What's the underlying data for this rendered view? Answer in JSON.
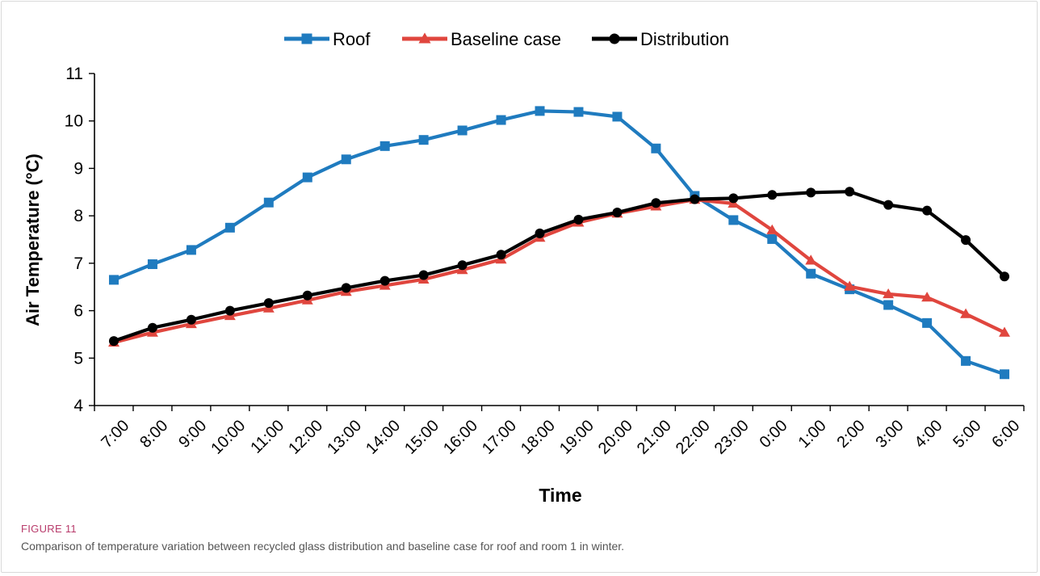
{
  "figure": {
    "label": "FIGURE 11",
    "caption": "Comparison of temperature variation between recycled glass distribution and baseline case for roof and room 1 in winter."
  },
  "chart_data": {
    "type": "line",
    "xlabel": "Time",
    "ylabel": "Air Temperature (°C)",
    "ylim": [
      4,
      11
    ],
    "yticks": [
      4,
      5,
      6,
      7,
      8,
      9,
      10,
      11
    ],
    "grid": false,
    "legend_position": "top",
    "categories": [
      "7:00",
      "8:00",
      "9:00",
      "10:00",
      "11:00",
      "12:00",
      "13:00",
      "14:00",
      "15:00",
      "16:00",
      "17:00",
      "18:00",
      "19:00",
      "20:00",
      "21:00",
      "22:00",
      "23:00",
      "0:00",
      "1:00",
      "2:00",
      "3:00",
      "4:00",
      "5:00",
      "6:00"
    ],
    "series": [
      {
        "name": "Roof",
        "color": "#1f7bbf",
        "marker": "square",
        "values": [
          6.65,
          6.98,
          7.28,
          7.75,
          8.28,
          8.81,
          9.19,
          9.47,
          9.6,
          9.8,
          10.02,
          10.21,
          10.19,
          10.09,
          9.42,
          8.42,
          7.91,
          7.51,
          6.78,
          6.45,
          6.12,
          5.74,
          4.94,
          4.66
        ]
      },
      {
        "name": "Baseline case",
        "color": "#e0463e",
        "marker": "triangle",
        "values": [
          5.33,
          5.54,
          5.72,
          5.89,
          6.05,
          6.22,
          6.4,
          6.53,
          6.66,
          6.86,
          7.08,
          7.54,
          7.86,
          8.05,
          8.2,
          8.34,
          8.26,
          7.7,
          7.06,
          6.51,
          6.35,
          6.28,
          5.93,
          5.54
        ]
      },
      {
        "name": "Distribution",
        "color": "#000000",
        "marker": "circle",
        "values": [
          5.36,
          5.64,
          5.81,
          6.0,
          6.16,
          6.32,
          6.48,
          6.63,
          6.75,
          6.96,
          7.18,
          7.63,
          7.92,
          8.07,
          8.27,
          8.35,
          8.37,
          8.44,
          8.49,
          8.51,
          8.23,
          8.11,
          7.49,
          6.72
        ]
      }
    ]
  }
}
